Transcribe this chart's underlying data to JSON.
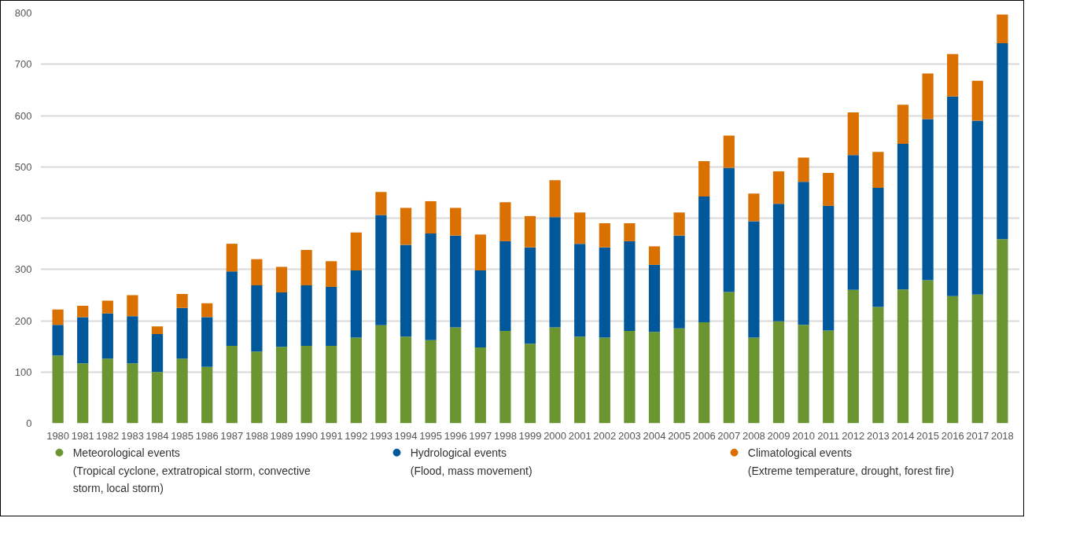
{
  "chart_data": {
    "type": "bar",
    "stacked": true,
    "categories": [
      "1980",
      "1981",
      "1982",
      "1983",
      "1984",
      "1985",
      "1986",
      "1987",
      "1988",
      "1989",
      "1990",
      "1991",
      "1992",
      "1993",
      "1994",
      "1995",
      "1996",
      "1997",
      "1998",
      "1999",
      "2000",
      "2001",
      "2002",
      "2003",
      "2004",
      "2005",
      "2006",
      "2007",
      "2008",
      "2009",
      "2010",
      "2011",
      "2012",
      "2013",
      "2014",
      "2015",
      "2016",
      "2017",
      "2018"
    ],
    "series": [
      {
        "name": "Meteorological events (Tropical cyclone, extratropical storm, convective storm, local storm)",
        "color": "#6a9530",
        "values": [
          132,
          117,
          126,
          117,
          100,
          126,
          110,
          151,
          140,
          149,
          151,
          151,
          167,
          191,
          169,
          162,
          187,
          148,
          180,
          155,
          187,
          169,
          167,
          180,
          178,
          185,
          197,
          256,
          167,
          199,
          192,
          181,
          260,
          227,
          261,
          279,
          248,
          251,
          359
        ]
      },
      {
        "name": "Hydrological events (Flood, mass movement)",
        "color": "#005799",
        "values": [
          60,
          90,
          88,
          92,
          74,
          99,
          97,
          145,
          129,
          106,
          118,
          115,
          131,
          215,
          179,
          208,
          179,
          150,
          175,
          188,
          215,
          181,
          176,
          175,
          131,
          181,
          245,
          242,
          227,
          229,
          279,
          243,
          263,
          232,
          284,
          314,
          389,
          339,
          382
        ]
      },
      {
        "name": "Climatological events (Extreme temperature, drought, forest fire)",
        "color": "#d97000",
        "values": [
          30,
          22,
          25,
          41,
          15,
          27,
          27,
          54,
          51,
          50,
          69,
          50,
          74,
          45,
          72,
          63,
          54,
          70,
          76,
          61,
          72,
          61,
          47,
          35,
          36,
          45,
          69,
          63,
          54,
          63,
          47,
          64,
          83,
          70,
          76,
          89,
          83,
          78,
          56
        ]
      }
    ],
    "ylim": [
      0,
      800
    ],
    "yticks": [
      0,
      100,
      200,
      300,
      400,
      500,
      600,
      700,
      800
    ],
    "grid": "y",
    "legend": "bottom"
  }
}
